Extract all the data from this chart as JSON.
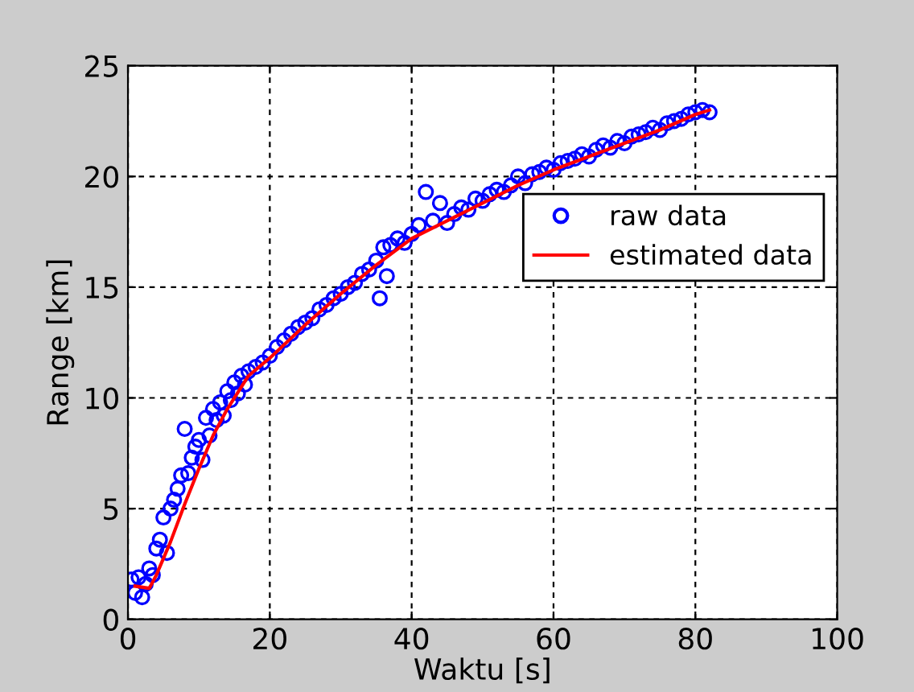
{
  "chart_data": {
    "type": "scatter",
    "xlabel": "Waktu [s]",
    "ylabel": "Range [km]",
    "xlim": [
      0,
      100
    ],
    "ylim": [
      0,
      25
    ],
    "xticks": [
      0,
      20,
      40,
      60,
      80,
      100
    ],
    "yticks": [
      0,
      5,
      10,
      15,
      20,
      25
    ],
    "grid": true,
    "legend": "right",
    "series": [
      {
        "name": "raw data",
        "color": "#0000ff",
        "marker": "circle",
        "x": [
          0.5,
          1,
          1.5,
          2,
          2.5,
          3,
          3.5,
          4,
          4.5,
          5,
          5.5,
          6,
          6.5,
          7,
          7.5,
          8,
          8.5,
          9,
          9.5,
          10,
          10.5,
          11,
          11.5,
          12,
          12.5,
          13,
          13.5,
          14,
          14.5,
          15,
          15.5,
          16,
          16.5,
          17,
          18,
          19,
          20,
          21,
          22,
          23,
          24,
          25,
          26,
          27,
          28,
          29,
          30,
          31,
          32,
          33,
          34,
          35,
          35.5,
          36,
          36.5,
          37,
          38,
          39,
          40,
          41,
          42,
          43,
          44,
          45,
          46,
          47,
          48,
          49,
          50,
          51,
          52,
          53,
          54,
          55,
          56,
          57,
          58,
          59,
          60,
          61,
          62,
          63,
          64,
          65,
          66,
          67,
          68,
          69,
          70,
          71,
          72,
          73,
          74,
          75,
          76,
          77,
          78,
          79,
          80,
          81,
          82
        ],
        "values": [
          1.8,
          1.2,
          1.9,
          1.0,
          1.6,
          2.3,
          2.0,
          3.2,
          3.6,
          4.6,
          3.0,
          5.0,
          5.4,
          5.9,
          6.5,
          8.6,
          6.6,
          7.3,
          7.8,
          8.1,
          7.2,
          9.1,
          8.3,
          9.5,
          9.0,
          9.8,
          9.2,
          10.3,
          9.9,
          10.7,
          10.2,
          11.0,
          10.6,
          11.2,
          11.4,
          11.6,
          11.9,
          12.3,
          12.6,
          12.9,
          13.2,
          13.4,
          13.6,
          14.0,
          14.2,
          14.5,
          14.7,
          15.0,
          15.2,
          15.6,
          15.8,
          16.2,
          14.5,
          16.8,
          15.5,
          16.9,
          17.2,
          17.0,
          17.4,
          17.8,
          19.3,
          18.0,
          18.8,
          17.9,
          18.3,
          18.6,
          18.5,
          19.0,
          18.9,
          19.2,
          19.4,
          19.3,
          19.6,
          20.0,
          19.7,
          20.1,
          20.2,
          20.4,
          20.3,
          20.6,
          20.7,
          20.8,
          21.0,
          20.9,
          21.2,
          21.4,
          21.3,
          21.6,
          21.5,
          21.8,
          21.9,
          22.0,
          22.2,
          22.1,
          22.4,
          22.5,
          22.6,
          22.8,
          22.9,
          23.0,
          22.9
        ]
      },
      {
        "name": "estimated data",
        "color": "#ff0000",
        "type": "line",
        "marker": "none",
        "x": [
          1,
          3,
          4,
          6,
          8,
          10,
          12,
          14,
          17,
          20,
          25,
          30,
          35,
          40,
          45,
          50,
          55,
          60,
          65,
          70,
          75,
          80,
          82
        ],
        "values": [
          1.5,
          1.4,
          2.0,
          3.5,
          5.2,
          6.8,
          8.3,
          9.5,
          11.0,
          11.8,
          13.3,
          14.7,
          16.0,
          17.2,
          18.0,
          18.8,
          19.6,
          20.3,
          20.9,
          21.5,
          22.1,
          22.8,
          23.0
        ]
      }
    ]
  }
}
